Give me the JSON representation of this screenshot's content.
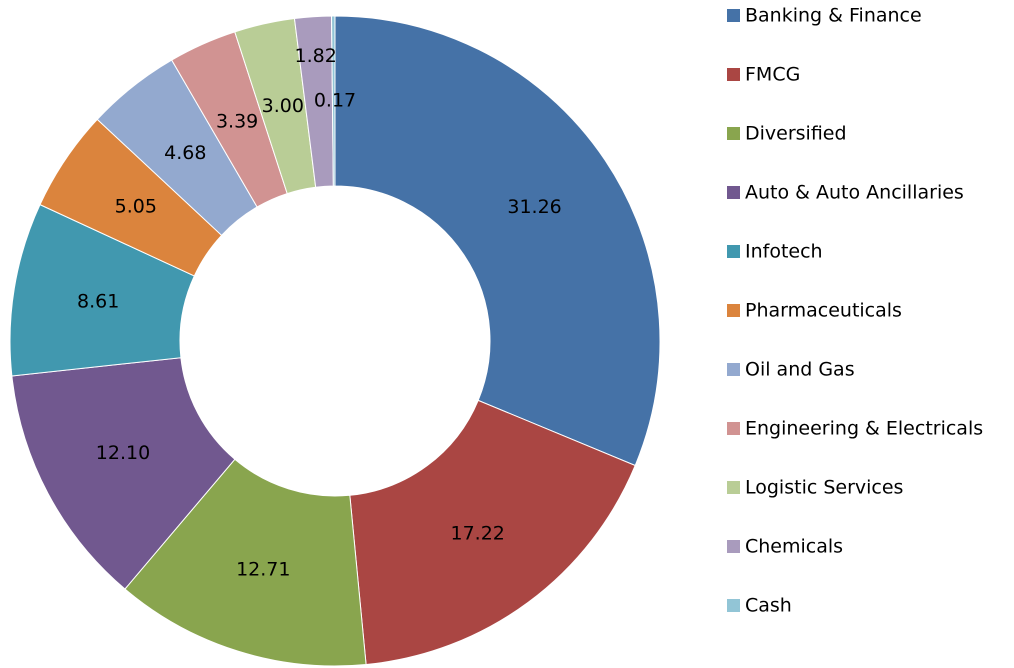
{
  "chart_data": {
    "type": "donut",
    "categories": [
      "Banking & Finance",
      "FMCG",
      "Diversified",
      "Auto & Auto Ancillaries",
      "Infotech",
      "Pharmaceuticals",
      "Oil and Gas",
      "Engineering & Electricals",
      "Logistic Services",
      "Chemicals",
      "Cash"
    ],
    "values": [
      31.26,
      17.22,
      12.71,
      12.1,
      8.61,
      5.05,
      4.68,
      3.39,
      3.0,
      1.82,
      0.17
    ],
    "value_labels": [
      "31.26",
      "17.22",
      "12.71",
      "12.10",
      "8.61",
      "5.05",
      "4.68",
      "3.39",
      "3.00",
      "1.82",
      "0.17"
    ],
    "colors": [
      "#4572a7",
      "#aa4643",
      "#89a54e",
      "#71588f",
      "#4198af",
      "#db843d",
      "#93a9cf",
      "#d19392",
      "#b9cd96",
      "#a99bbd",
      "#92c5d6"
    ],
    "legend": "right"
  }
}
